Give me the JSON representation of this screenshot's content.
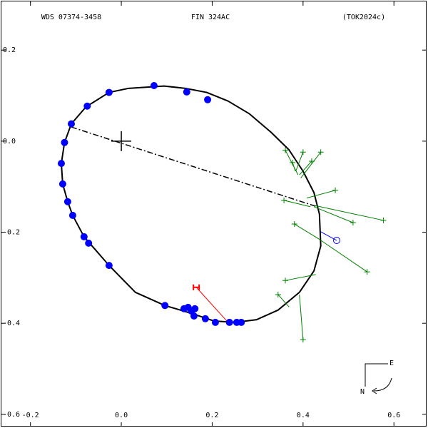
{
  "chart_data": {
    "type": "orbit",
    "title_left": "WDS 07374-3458",
    "title": "FIN 324AC",
    "title_right": "(TOK2024c)",
    "compass": {
      "east": "E",
      "north": "N"
    },
    "xlim": [
      -0.267,
      0.675
    ],
    "ylim": [
      -0.63,
      0.31
    ],
    "xticks": [
      -0.2,
      {
        "value": 0,
        "label": "0.0"
      },
      0.2,
      0.4,
      0.6
    ],
    "yticks": [
      0.2,
      {
        "value": 0,
        "label": "0.0"
      },
      -0.2,
      -0.4,
      -0.6
    ],
    "primary": {
      "x": 0,
      "y": 0
    },
    "orbit": {
      "color": "#000000",
      "x": [
        -0.11,
        -0.125,
        -0.132,
        -0.129,
        -0.118,
        -0.107,
        -0.082,
        -0.027,
        0.031,
        0.096,
        0.157,
        0.204,
        0.251,
        0.298,
        0.345,
        0.392,
        0.424,
        0.439,
        0.436,
        0.424,
        0.4,
        0.369,
        0.329,
        0.282,
        0.235,
        0.188,
        0.141,
        0.094,
        0.016,
        -0.027,
        -0.078
      ],
      "y": [
        0.038,
        -0.003,
        -0.049,
        -0.094,
        -0.133,
        -0.163,
        -0.21,
        -0.273,
        -0.332,
        -0.361,
        -0.379,
        -0.395,
        -0.398,
        -0.392,
        -0.371,
        -0.332,
        -0.285,
        -0.23,
        -0.16,
        -0.113,
        -0.066,
        -0.019,
        0.02,
        0.06,
        0.088,
        0.107,
        0.116,
        0.121,
        0.116,
        0.107,
        0.075
      ]
    },
    "line_of_nodes": {
      "x": [
        -0.11,
        0.431
      ],
      "y": [
        0.031,
        -0.144
      ]
    },
    "observations": {
      "color": "#0000ff",
      "x": [
        -0.11,
        -0.125,
        -0.132,
        -0.129,
        -0.118,
        -0.107,
        -0.082,
        -0.072,
        -0.027,
        0.096,
        0.138,
        0.147,
        0.154,
        0.162,
        0.16,
        0.185,
        0.207,
        0.238,
        0.254,
        0.264,
        -0.027,
        -0.075,
        0.072,
        0.144,
        0.19
      ],
      "y": [
        0.038,
        -0.003,
        -0.049,
        -0.094,
        -0.133,
        -0.163,
        -0.21,
        -0.224,
        -0.273,
        -0.361,
        -0.368,
        -0.365,
        -0.373,
        -0.368,
        -0.384,
        -0.39,
        -0.398,
        -0.398,
        -0.398,
        -0.398,
        0.107,
        0.077,
        0.122,
        0.108,
        0.091
      ]
    },
    "secondary_observations": {
      "color": "#008000",
      "x": [
        0.361,
        0.377,
        0.4,
        0.419,
        0.439,
        0.471,
        0.358,
        0.51,
        0.577,
        0.541,
        0.381,
        0.361,
        0.345,
        0.4
      ],
      "y": [
        -0.02,
        -0.047,
        -0.024,
        -0.044,
        -0.024,
        -0.108,
        -0.13,
        -0.179,
        -0.174,
        -0.287,
        -0.182,
        -0.306,
        -0.337,
        -0.436
      ],
      "x_fit": [
        0.389,
        0.383,
        0.384,
        0.392,
        0.395,
        0.408,
        0.416,
        0.424,
        0.424,
        0.435,
        0.435,
        0.428,
        0.369,
        0.392
      ],
      "y_fit": [
        -0.074,
        -0.066,
        -0.066,
        -0.074,
        -0.081,
        -0.125,
        -0.144,
        -0.144,
        -0.141,
        -0.215,
        -0.215,
        -0.293,
        -0.364,
        -0.337
      ]
    },
    "rejected": {
      "color": "#ff0000",
      "x": [
        0.165
      ],
      "y": [
        -0.321
      ],
      "x_fit": [
        0.235
      ],
      "y_fit": [
        -0.398
      ]
    },
    "open_point": {
      "color": "#0000ff",
      "x": [
        0.474
      ],
      "y": [
        -0.218
      ],
      "x_fit": [
        0.439
      ],
      "y_fit": [
        -0.199
      ]
    }
  }
}
